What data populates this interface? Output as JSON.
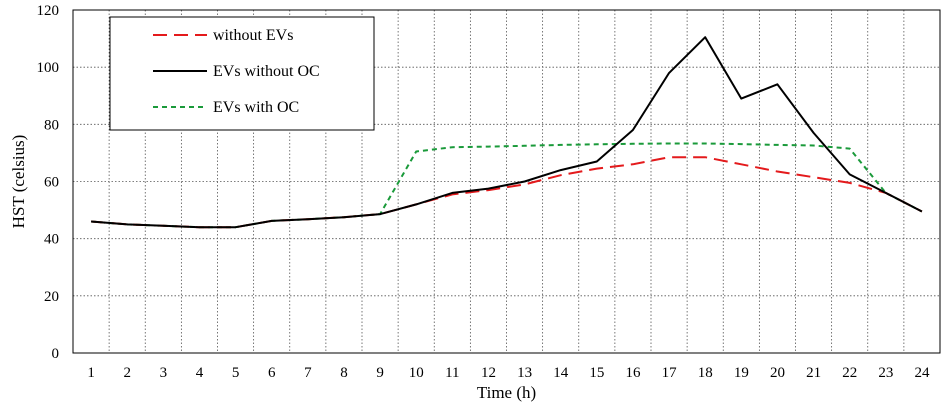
{
  "chart_data": {
    "type": "line",
    "title": "",
    "xlabel": "Time (h)",
    "ylabel": "HST (celsius)",
    "x": [
      1,
      2,
      3,
      4,
      5,
      6,
      7,
      8,
      9,
      10,
      11,
      12,
      13,
      14,
      15,
      16,
      17,
      18,
      19,
      20,
      21,
      22,
      23,
      24
    ],
    "xlim": [
      1,
      24
    ],
    "ylim": [
      0,
      120
    ],
    "yticks": [
      0,
      20,
      40,
      60,
      80,
      100,
      120
    ],
    "grid": true,
    "legend_position": "top-left",
    "series": [
      {
        "name": "without EVs",
        "color": "#e41a1c",
        "style": "long-dash",
        "values": [
          46,
          45,
          44.5,
          44,
          44,
          46.2,
          46.8,
          47.5,
          48.6,
          52,
          55.5,
          57,
          59,
          62.2,
          64.5,
          66,
          68.5,
          68.5,
          66,
          63.5,
          61.5,
          59.5,
          56,
          49.5
        ]
      },
      {
        "name": "EVs without OC",
        "color": "#000000",
        "style": "solid",
        "values": [
          46,
          45,
          44.5,
          44,
          44,
          46.2,
          46.8,
          47.5,
          48.6,
          52,
          56,
          57.5,
          60,
          64,
          67,
          78,
          98,
          110.5,
          89,
          94,
          77,
          62.5,
          56,
          49.5
        ]
      },
      {
        "name": "EVs with  OC",
        "color": "#1a9a3a",
        "style": "short-dash",
        "values": [
          46,
          45,
          44.5,
          44,
          44,
          46.2,
          46.8,
          47.5,
          48.6,
          70.5,
          72,
          72.2,
          72.5,
          72.8,
          73,
          73.2,
          73.3,
          73.3,
          73.1,
          72.8,
          72.6,
          71.5,
          56,
          49.5
        ]
      }
    ]
  }
}
